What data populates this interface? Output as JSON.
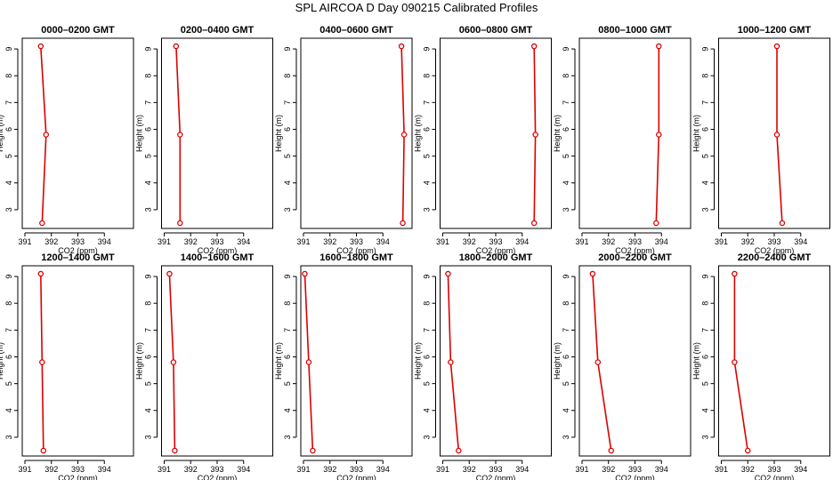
{
  "figure_title": "SPL AIRCOA D  Day 090215  Calibrated Profiles",
  "colors": {
    "series": "#dd0000",
    "axis": "#000000",
    "background": "#ffffff"
  },
  "chart_data": [
    {
      "type": "line",
      "title": "0000–0200 GMT",
      "xlabel": "CO2 (ppm)",
      "ylabel": "Height (m)",
      "xlim": [
        390.9,
        395.1
      ],
      "ylim": [
        2.3,
        9.4
      ],
      "xticks": [
        391,
        392,
        393,
        394
      ],
      "yticks": [
        3,
        4,
        5,
        6,
        7,
        8,
        9
      ],
      "grid": false,
      "series": [
        {
          "x": [
            391.6,
            391.8,
            391.65
          ],
          "y": [
            9.1,
            5.8,
            2.5
          ]
        }
      ]
    },
    {
      "type": "line",
      "title": "0200–0400 GMT",
      "xlabel": "CO2 (ppm)",
      "ylabel": "Height (m)",
      "xlim": [
        390.9,
        395.1
      ],
      "ylim": [
        2.3,
        9.4
      ],
      "xticks": [
        391,
        392,
        393,
        394
      ],
      "yticks": [
        3,
        4,
        5,
        6,
        7,
        8,
        9
      ],
      "grid": false,
      "series": [
        {
          "x": [
            391.45,
            391.6,
            391.6
          ],
          "y": [
            9.1,
            5.8,
            2.5
          ]
        }
      ]
    },
    {
      "type": "line",
      "title": "0400–0600 GMT",
      "xlabel": "CO2 (ppm)",
      "ylabel": "Height (m)",
      "xlim": [
        390.9,
        395.1
      ],
      "ylim": [
        2.3,
        9.4
      ],
      "xticks": [
        391,
        392,
        393,
        394
      ],
      "yticks": [
        3,
        4,
        5,
        6,
        7,
        8,
        9
      ],
      "grid": false,
      "series": [
        {
          "x": [
            394.7,
            394.8,
            394.75
          ],
          "y": [
            9.1,
            5.8,
            2.5
          ]
        }
      ]
    },
    {
      "type": "line",
      "title": "0600–0800 GMT",
      "xlabel": "CO2 (ppm)",
      "ylabel": "Height (m)",
      "xlim": [
        390.9,
        395.1
      ],
      "ylim": [
        2.3,
        9.4
      ],
      "xticks": [
        391,
        392,
        393,
        394
      ],
      "yticks": [
        3,
        4,
        5,
        6,
        7,
        8,
        9
      ],
      "grid": false,
      "series": [
        {
          "x": [
            394.45,
            394.5,
            394.45
          ],
          "y": [
            9.1,
            5.8,
            2.5
          ]
        }
      ]
    },
    {
      "type": "line",
      "title": "0800–1000 GMT",
      "xlabel": "CO2 (ppm)",
      "ylabel": "Height (m)",
      "xlim": [
        390.9,
        395.1
      ],
      "ylim": [
        2.3,
        9.4
      ],
      "xticks": [
        391,
        392,
        393,
        394
      ],
      "yticks": [
        3,
        4,
        5,
        6,
        7,
        8,
        9
      ],
      "grid": false,
      "series": [
        {
          "x": [
            393.9,
            393.9,
            393.8
          ],
          "y": [
            9.1,
            5.8,
            2.5
          ]
        }
      ]
    },
    {
      "type": "line",
      "title": "1000–1200 GMT",
      "xlabel": "CO2 (ppm)",
      "ylabel": "Height (m)",
      "xlim": [
        390.9,
        395.1
      ],
      "ylim": [
        2.3,
        9.4
      ],
      "xticks": [
        391,
        392,
        393,
        394
      ],
      "yticks": [
        3,
        4,
        5,
        6,
        7,
        8,
        9
      ],
      "grid": false,
      "series": [
        {
          "x": [
            393.1,
            393.1,
            393.3
          ],
          "y": [
            9.1,
            5.8,
            2.5
          ]
        }
      ]
    },
    {
      "type": "line",
      "title": "1200–1400 GMT",
      "xlabel": "CO2 (ppm)",
      "ylabel": "Height (m)",
      "xlim": [
        390.9,
        395.1
      ],
      "ylim": [
        2.3,
        9.4
      ],
      "xticks": [
        391,
        392,
        393,
        394
      ],
      "yticks": [
        3,
        4,
        5,
        6,
        7,
        8,
        9
      ],
      "grid": false,
      "series": [
        {
          "x": [
            391.6,
            391.65,
            391.7
          ],
          "y": [
            9.1,
            5.8,
            2.5
          ]
        }
      ]
    },
    {
      "type": "line",
      "title": "1400–1600 GMT",
      "xlabel": "CO2 (ppm)",
      "ylabel": "Height (m)",
      "xlim": [
        390.9,
        395.1
      ],
      "ylim": [
        2.3,
        9.4
      ],
      "xticks": [
        391,
        392,
        393,
        394
      ],
      "yticks": [
        3,
        4,
        5,
        6,
        7,
        8,
        9
      ],
      "grid": false,
      "series": [
        {
          "x": [
            391.2,
            391.35,
            391.4
          ],
          "y": [
            9.1,
            5.8,
            2.5
          ]
        }
      ]
    },
    {
      "type": "line",
      "title": "1600–1800 GMT",
      "xlabel": "CO2 (ppm)",
      "ylabel": "Height (m)",
      "xlim": [
        390.9,
        395.1
      ],
      "ylim": [
        2.3,
        9.4
      ],
      "xticks": [
        391,
        392,
        393,
        394
      ],
      "yticks": [
        3,
        4,
        5,
        6,
        7,
        8,
        9
      ],
      "grid": false,
      "series": [
        {
          "x": [
            391.05,
            391.2,
            391.35
          ],
          "y": [
            9.1,
            5.8,
            2.5
          ]
        }
      ]
    },
    {
      "type": "line",
      "title": "1800–2000 GMT",
      "xlabel": "CO2 (ppm)",
      "ylabel": "Height (m)",
      "xlim": [
        390.9,
        395.1
      ],
      "ylim": [
        2.3,
        9.4
      ],
      "xticks": [
        391,
        392,
        393,
        394
      ],
      "yticks": [
        3,
        4,
        5,
        6,
        7,
        8,
        9
      ],
      "grid": false,
      "series": [
        {
          "x": [
            391.2,
            391.3,
            391.6
          ],
          "y": [
            9.1,
            5.8,
            2.5
          ]
        }
      ]
    },
    {
      "type": "line",
      "title": "2000–2200 GMT",
      "xlabel": "CO2 (ppm)",
      "ylabel": "Height (m)",
      "xlim": [
        390.9,
        395.1
      ],
      "ylim": [
        2.3,
        9.4
      ],
      "xticks": [
        391,
        392,
        393,
        394
      ],
      "yticks": [
        3,
        4,
        5,
        6,
        7,
        8,
        9
      ],
      "grid": false,
      "series": [
        {
          "x": [
            391.4,
            391.6,
            392.1
          ],
          "y": [
            9.1,
            5.8,
            2.5
          ]
        }
      ]
    },
    {
      "type": "line",
      "title": "2200–2400 GMT",
      "xlabel": "CO2 (ppm)",
      "ylabel": "Height (m)",
      "xlim": [
        390.9,
        395.1
      ],
      "ylim": [
        2.3,
        9.4
      ],
      "xticks": [
        391,
        392,
        393,
        394
      ],
      "yticks": [
        3,
        4,
        5,
        6,
        7,
        8,
        9
      ],
      "grid": false,
      "series": [
        {
          "x": [
            391.5,
            391.5,
            392.0
          ],
          "y": [
            9.1,
            5.8,
            2.5
          ]
        }
      ]
    }
  ]
}
